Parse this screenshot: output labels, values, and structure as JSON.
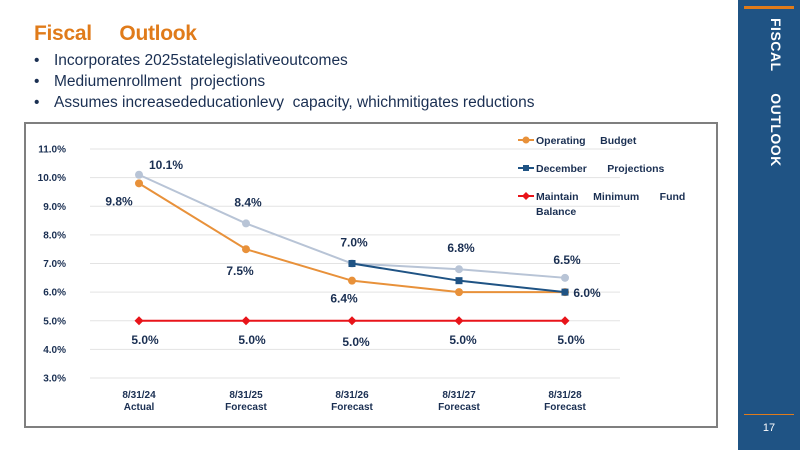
{
  "slide": {
    "title": "Fiscal     Outlook",
    "bullets": [
      "Incorporates 2025statelegislativeoutcomes",
      "Mediumenrollment  projections",
      "Assumes increasededucationlevy  capacity, whichmitigates reductions"
    ],
    "bullet_char": "•",
    "sidebar_title": "FISCAL     OUTLOOK",
    "page_number": "17"
  },
  "colors": {
    "accent": "#e07b1a",
    "sidebar": "#1f5384",
    "text": "#1a2f52"
  },
  "chart_data": {
    "type": "line",
    "categories": [
      [
        "8/31/24",
        "Actual"
      ],
      [
        "8/31/25",
        "Forecast"
      ],
      [
        "8/31/26",
        "Forecast"
      ],
      [
        "8/31/27",
        "Forecast"
      ],
      [
        "8/31/28",
        "Forecast"
      ]
    ],
    "y_ticks": [
      "3.0%",
      "4.0%",
      "5.0%",
      "6.0%",
      "7.0%",
      "8.0%",
      "9.0%",
      "10.0%",
      "11.0%"
    ],
    "ylim": [
      3,
      11
    ],
    "grid": true,
    "legend_position": "top-right",
    "series": [
      {
        "name": "Operating     Budget",
        "color": "#e8913a",
        "marker": "circle",
        "values": [
          9.8,
          7.5,
          6.4,
          6.0,
          6.0
        ],
        "labels": [
          "9.8%",
          "7.5%",
          "6.4%",
          "",
          "6.0%"
        ]
      },
      {
        "name": "December       Projections",
        "color": "#1f5384",
        "marker": "square",
        "values": [
          null,
          null,
          7.0,
          6.4,
          6.0
        ],
        "labels": [
          "",
          "",
          "",
          "",
          ""
        ]
      },
      {
        "name": "Maintain     Minimum       Fund Balance",
        "color": "#e8141a",
        "marker": "diamond",
        "values": [
          5.0,
          5.0,
          5.0,
          5.0,
          5.0
        ],
        "labels": [
          "5.0%",
          "5.0%",
          "5.0%",
          "5.0%",
          "5.0%"
        ]
      },
      {
        "name": "",
        "color": "#b8c4d6",
        "marker": "circle",
        "in_legend": false,
        "values": [
          10.1,
          8.4,
          7.0,
          6.8,
          6.5
        ],
        "labels": [
          "10.1%",
          "8.4%",
          "7.0%",
          "6.8%",
          "6.5%"
        ]
      }
    ],
    "legend_lines": [
      [
        "Operating     Budget"
      ],
      [
        "December       Projections"
      ],
      [
        "Maintain     Minimum       Fund",
        "Balance"
      ]
    ]
  }
}
